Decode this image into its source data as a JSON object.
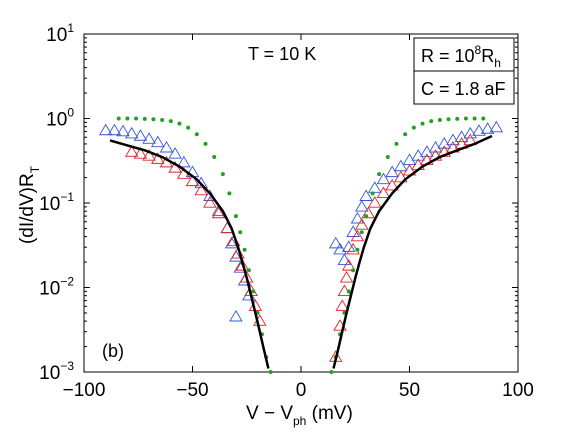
{
  "chart_data": {
    "type": "scatter",
    "panel_label": "(b)",
    "temperature_label": "T = 10 K",
    "xlabel": {
      "main": "V − V",
      "sub": "ph",
      "unit": " (mV)"
    },
    "ylabel": {
      "main": "(dI/dV)R",
      "sub": "T"
    },
    "xlim": [
      -100,
      100
    ],
    "ylim": [
      0.001,
      10
    ],
    "yscale": "log",
    "xticks": [
      {
        "value": -100,
        "label": "−100"
      },
      {
        "value": -50,
        "label": "−50"
      },
      {
        "value": 0,
        "label": "0"
      },
      {
        "value": 50,
        "label": "50"
      },
      {
        "value": 100,
        "label": "100"
      }
    ],
    "yticks": [
      {
        "value": 0.001,
        "base": "10",
        "exp": "−3"
      },
      {
        "value": 0.01,
        "base": "10",
        "exp": "−2"
      },
      {
        "value": 0.1,
        "base": "10",
        "exp": "−1"
      },
      {
        "value": 1,
        "base": "10",
        "exp": "0"
      },
      {
        "value": 10,
        "base": "10",
        "exp": "1"
      }
    ],
    "legend_box": {
      "line1": {
        "pre": "R = 10",
        "sup": "8",
        "mid": "R",
        "sub": "h"
      },
      "line2": "C = 1.8 aF"
    },
    "series": [
      {
        "marker": "triangle-open",
        "color": "#3355dd",
        "points": [
          [
            -90,
            0.72
          ],
          [
            -86,
            0.72
          ],
          [
            -82,
            0.7
          ],
          [
            -78,
            0.66
          ],
          [
            -74,
            0.62
          ],
          [
            -70,
            0.57
          ],
          [
            -66,
            0.52
          ],
          [
            -62,
            0.45
          ],
          [
            -58,
            0.38
          ],
          [
            -54,
            0.3
          ],
          [
            -50,
            0.23
          ],
          [
            -46,
            0.17
          ],
          [
            -42,
            0.12
          ],
          [
            -38,
            0.08
          ],
          [
            -34,
            0.05
          ],
          [
            -32,
            0.033
          ],
          [
            -30,
            0.023
          ],
          [
            -28,
            0.017
          ],
          [
            -26,
            0.012
          ],
          [
            -24,
            0.008
          ],
          [
            -30,
            0.0045
          ],
          [
            16,
            0.033
          ],
          [
            18,
            0.028
          ],
          [
            20,
            0.021
          ],
          [
            22,
            0.03
          ],
          [
            24,
            0.045
          ],
          [
            26,
            0.065
          ],
          [
            28,
            0.09
          ],
          [
            30,
            0.12
          ],
          [
            34,
            0.15
          ],
          [
            38,
            0.19
          ],
          [
            42,
            0.23
          ],
          [
            46,
            0.27
          ],
          [
            50,
            0.32
          ],
          [
            54,
            0.36
          ],
          [
            58,
            0.4
          ],
          [
            62,
            0.45
          ],
          [
            66,
            0.5
          ],
          [
            70,
            0.55
          ],
          [
            74,
            0.6
          ],
          [
            78,
            0.66
          ],
          [
            82,
            0.71
          ],
          [
            86,
            0.75
          ],
          [
            90,
            0.78
          ]
        ]
      },
      {
        "marker": "triangle-open",
        "color": "#dd2222",
        "points": [
          [
            -78,
            0.4
          ],
          [
            -74,
            0.38
          ],
          [
            -70,
            0.36
          ],
          [
            -66,
            0.33
          ],
          [
            -62,
            0.3
          ],
          [
            -58,
            0.26
          ],
          [
            -54,
            0.22
          ],
          [
            -50,
            0.18
          ],
          [
            -46,
            0.14
          ],
          [
            -42,
            0.1
          ],
          [
            -38,
            0.075
          ],
          [
            -34,
            0.05
          ],
          [
            -31,
            0.035
          ],
          [
            -29,
            0.025
          ],
          [
            -27,
            0.018
          ],
          [
            -25,
            0.013
          ],
          [
            -23,
            0.009
          ],
          [
            -21,
            0.006
          ],
          [
            -19,
            0.004
          ],
          [
            16,
            0.0015
          ],
          [
            18,
            0.0035
          ],
          [
            19,
            0.006
          ],
          [
            20,
            0.009
          ],
          [
            21,
            0.013
          ],
          [
            22,
            0.018
          ],
          [
            24,
            0.028
          ],
          [
            26,
            0.04
          ],
          [
            28,
            0.055
          ],
          [
            31,
            0.075
          ],
          [
            34,
            0.1
          ],
          [
            38,
            0.13
          ],
          [
            42,
            0.16
          ],
          [
            46,
            0.2
          ],
          [
            50,
            0.24
          ],
          [
            54,
            0.28
          ],
          [
            58,
            0.32
          ],
          [
            62,
            0.36
          ],
          [
            66,
            0.4
          ],
          [
            70,
            0.45
          ],
          [
            74,
            0.5
          ],
          [
            78,
            0.55
          ]
        ]
      },
      {
        "marker": "dot",
        "color": "#22a022",
        "points": [
          [
            -84,
            1.0
          ],
          [
            -80,
            1.0
          ],
          [
            -76,
            1.0
          ],
          [
            -72,
            0.99
          ],
          [
            -68,
            0.98
          ],
          [
            -64,
            0.96
          ],
          [
            -60,
            0.93
          ],
          [
            -56,
            0.87
          ],
          [
            -52,
            0.78
          ],
          [
            -48,
            0.65
          ],
          [
            -44,
            0.5
          ],
          [
            -40,
            0.35
          ],
          [
            -36,
            0.22
          ],
          [
            -33,
            0.13
          ],
          [
            -30,
            0.07
          ],
          [
            -28,
            0.045
          ],
          [
            -26,
            0.028
          ],
          [
            -24,
            0.016
          ],
          [
            -22,
            0.009
          ],
          [
            -20,
            0.005
          ],
          [
            -18,
            0.0028
          ],
          [
            -16,
            0.0015
          ],
          [
            -14,
            0.001
          ],
          [
            14,
            0.001
          ],
          [
            16,
            0.0015
          ],
          [
            18,
            0.0028
          ],
          [
            20,
            0.005
          ],
          [
            22,
            0.009
          ],
          [
            24,
            0.016
          ],
          [
            26,
            0.028
          ],
          [
            28,
            0.045
          ],
          [
            30,
            0.07
          ],
          [
            33,
            0.13
          ],
          [
            36,
            0.22
          ],
          [
            40,
            0.35
          ],
          [
            44,
            0.5
          ],
          [
            48,
            0.65
          ],
          [
            52,
            0.78
          ],
          [
            56,
            0.87
          ],
          [
            60,
            0.93
          ],
          [
            64,
            0.96
          ],
          [
            68,
            0.98
          ],
          [
            72,
            0.99
          ],
          [
            76,
            1.0
          ],
          [
            80,
            1.0
          ],
          [
            84,
            1.0
          ]
        ]
      },
      {
        "marker": "line",
        "color": "#000000",
        "points": [
          [
            -88,
            0.55
          ],
          [
            -80,
            0.48
          ],
          [
            -72,
            0.42
          ],
          [
            -64,
            0.35
          ],
          [
            -56,
            0.27
          ],
          [
            -48,
            0.19
          ],
          [
            -42,
            0.13
          ],
          [
            -36,
            0.08
          ],
          [
            -32,
            0.05
          ],
          [
            -29,
            0.03
          ],
          [
            -27,
            0.02
          ],
          [
            -25,
            0.013
          ],
          [
            -23,
            0.008
          ],
          [
            -21,
            0.005
          ],
          [
            -19,
            0.003
          ],
          [
            -17,
            0.0018
          ],
          [
            -15,
            0.0011
          ]
        ]
      },
      {
        "marker": "line",
        "color": "#000000",
        "points": [
          [
            15,
            0.0011
          ],
          [
            17,
            0.0018
          ],
          [
            19,
            0.003
          ],
          [
            21,
            0.005
          ],
          [
            23,
            0.008
          ],
          [
            25,
            0.013
          ],
          [
            27,
            0.02
          ],
          [
            29,
            0.03
          ],
          [
            32,
            0.05
          ],
          [
            36,
            0.08
          ],
          [
            42,
            0.13
          ],
          [
            48,
            0.19
          ],
          [
            56,
            0.27
          ],
          [
            64,
            0.35
          ],
          [
            72,
            0.42
          ],
          [
            80,
            0.5
          ],
          [
            88,
            0.62
          ]
        ]
      }
    ]
  }
}
